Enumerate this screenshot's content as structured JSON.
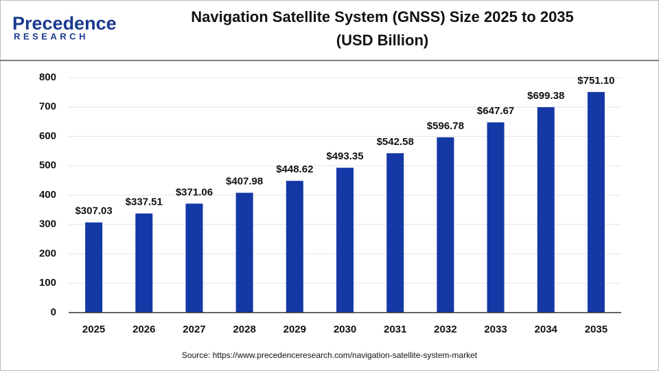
{
  "logo": {
    "name": "Precedence",
    "tagline": "RESEARCH"
  },
  "chart_data": {
    "type": "bar",
    "title": "Navigation Satellite System (GNSS) Size 2025 to 2035",
    "subtitle": "(USD Billion)",
    "categories": [
      "2025",
      "2026",
      "2027",
      "2028",
      "2029",
      "2030",
      "2031",
      "2032",
      "2033",
      "2034",
      "2035"
    ],
    "values": [
      307.03,
      337.51,
      371.06,
      407.98,
      448.62,
      493.35,
      542.58,
      596.78,
      647.67,
      699.38,
      751.1
    ],
    "value_labels": [
      "$307.03",
      "$337.51",
      "$371.06",
      "$407.98",
      "$448.62",
      "$493.35",
      "$542.58",
      "$596.78",
      "$647.67",
      "$699.38",
      "$751.10"
    ],
    "color": "#1438a6",
    "ylim": [
      0,
      800
    ],
    "yticks": [
      0,
      100,
      200,
      300,
      400,
      500,
      600,
      700,
      800
    ],
    "grid": true,
    "source": "Source: https://www.precedenceresearch.com/navigation-satellite-system-market"
  }
}
